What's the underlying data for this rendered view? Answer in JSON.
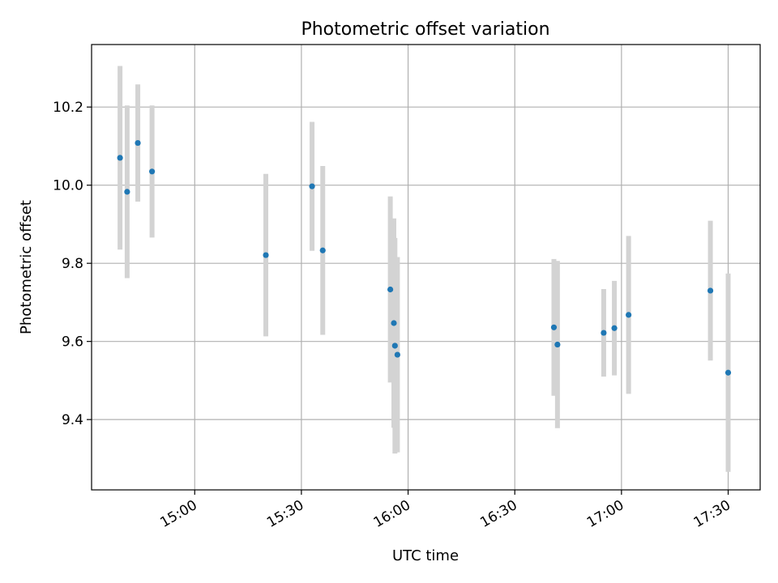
{
  "chart_data": {
    "type": "scatter",
    "title": "Photometric offset variation",
    "xlabel": "UTC time",
    "ylabel": "Photometric offset",
    "x_tick_labels": [
      "15:00",
      "15:30",
      "16:00",
      "16:30",
      "17:00",
      "17:30"
    ],
    "y_tick_labels": [
      "9.4",
      "9.6",
      "9.8",
      "10.0",
      "10.2"
    ],
    "y_ticks": [
      9.4,
      9.6,
      9.8,
      10.0,
      10.2
    ],
    "ylim": [
      9.22,
      10.36
    ],
    "xlim": [
      "14:31",
      "17:39"
    ],
    "grid": true,
    "errorbar_color": "#d3d3d3",
    "marker_color": "#1f77b4",
    "points": [
      {
        "time": "14:39",
        "y": 10.07,
        "ylow": 9.835,
        "yhigh": 10.305
      },
      {
        "time": "14:41",
        "y": 9.983,
        "ylow": 9.762,
        "yhigh": 10.204
      },
      {
        "time": "14:44",
        "y": 10.108,
        "ylow": 9.958,
        "yhigh": 10.258
      },
      {
        "time": "14:48",
        "y": 10.035,
        "ylow": 9.866,
        "yhigh": 10.204
      },
      {
        "time": "15:20",
        "y": 9.821,
        "ylow": 9.613,
        "yhigh": 10.029
      },
      {
        "time": "15:33",
        "y": 9.997,
        "ylow": 9.832,
        "yhigh": 10.162
      },
      {
        "time": "15:36",
        "y": 9.833,
        "ylow": 9.617,
        "yhigh": 10.049
      },
      {
        "time": "15:55",
        "y": 9.733,
        "ylow": 9.495,
        "yhigh": 9.971
      },
      {
        "time": "15:56",
        "y": 9.647,
        "ylow": 9.379,
        "yhigh": 9.915
      },
      {
        "time": "15:56.3",
        "y": 9.589,
        "ylow": 9.313,
        "yhigh": 9.865
      },
      {
        "time": "15:57",
        "y": 9.566,
        "ylow": 9.316,
        "yhigh": 9.816
      },
      {
        "time": "16:41",
        "y": 9.636,
        "ylow": 9.461,
        "yhigh": 9.811
      },
      {
        "time": "16:42",
        "y": 9.592,
        "ylow": 9.378,
        "yhigh": 9.806
      },
      {
        "time": "16:55",
        "y": 9.622,
        "ylow": 9.51,
        "yhigh": 9.734
      },
      {
        "time": "16:58",
        "y": 9.634,
        "ylow": 9.513,
        "yhigh": 9.755
      },
      {
        "time": "17:02",
        "y": 9.668,
        "ylow": 9.466,
        "yhigh": 9.87
      },
      {
        "time": "17:25",
        "y": 9.73,
        "ylow": 9.551,
        "yhigh": 9.909
      },
      {
        "time": "17:30",
        "y": 9.52,
        "ylow": 9.266,
        "yhigh": 9.774
      }
    ]
  }
}
